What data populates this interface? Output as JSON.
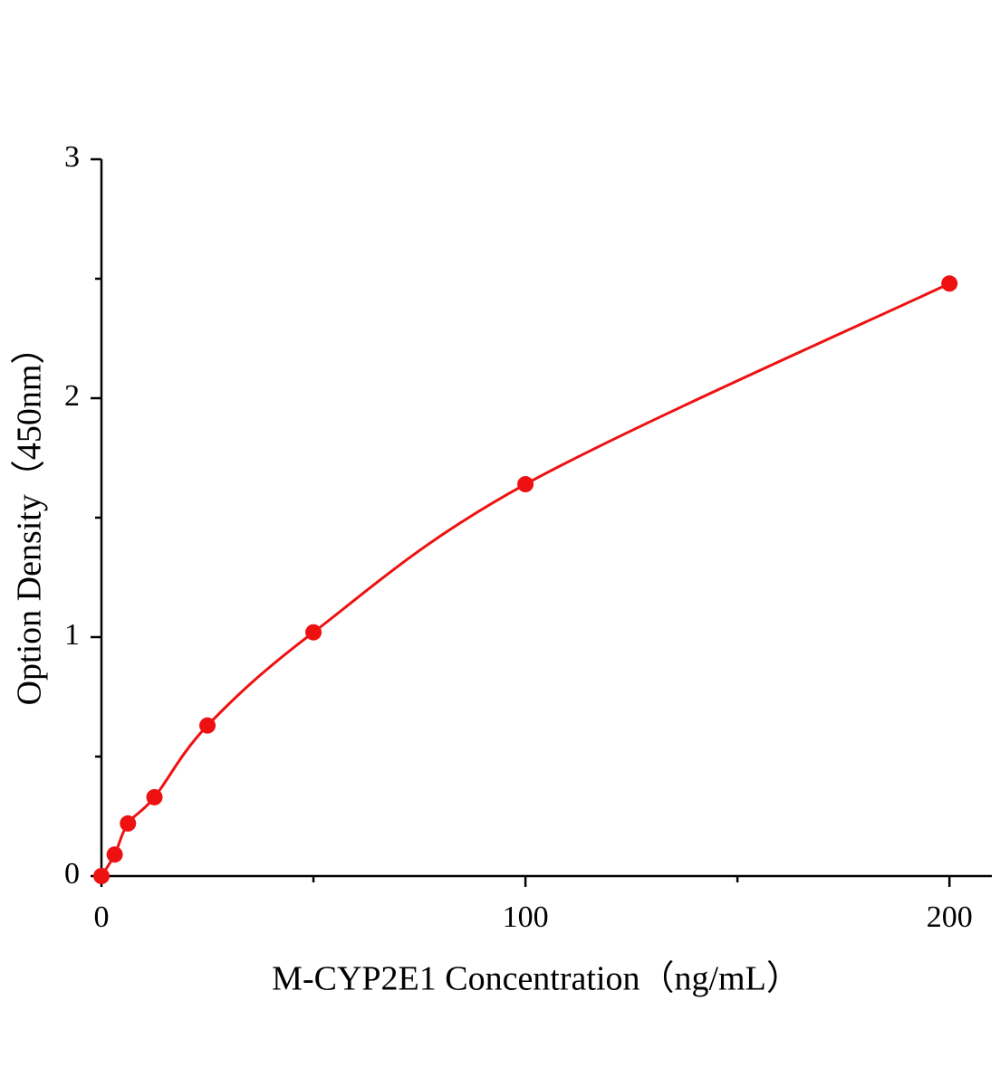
{
  "chart_data": {
    "type": "scatter",
    "x_label": "M-CYP2E1 Concentration（ng/mL）",
    "y_label": "Option Density（450nm）",
    "x": [
      0,
      3.125,
      6.25,
      12.5,
      25,
      50,
      100,
      200
    ],
    "series": [
      {
        "color": "#ee1111",
        "values": [
          0,
          0.09,
          0.22,
          0.33,
          0.63,
          1.02,
          1.64,
          2.48
        ]
      }
    ],
    "fit_line": true,
    "xlim": [
      0,
      210
    ],
    "xticks": [
      0,
      100,
      200
    ],
    "xminorticks": [
      50,
      150
    ],
    "ylim": [
      0,
      3
    ],
    "yticks": [
      0,
      1,
      2,
      3
    ],
    "yminorticks": [
      0.5,
      1.5,
      2.5
    ]
  }
}
